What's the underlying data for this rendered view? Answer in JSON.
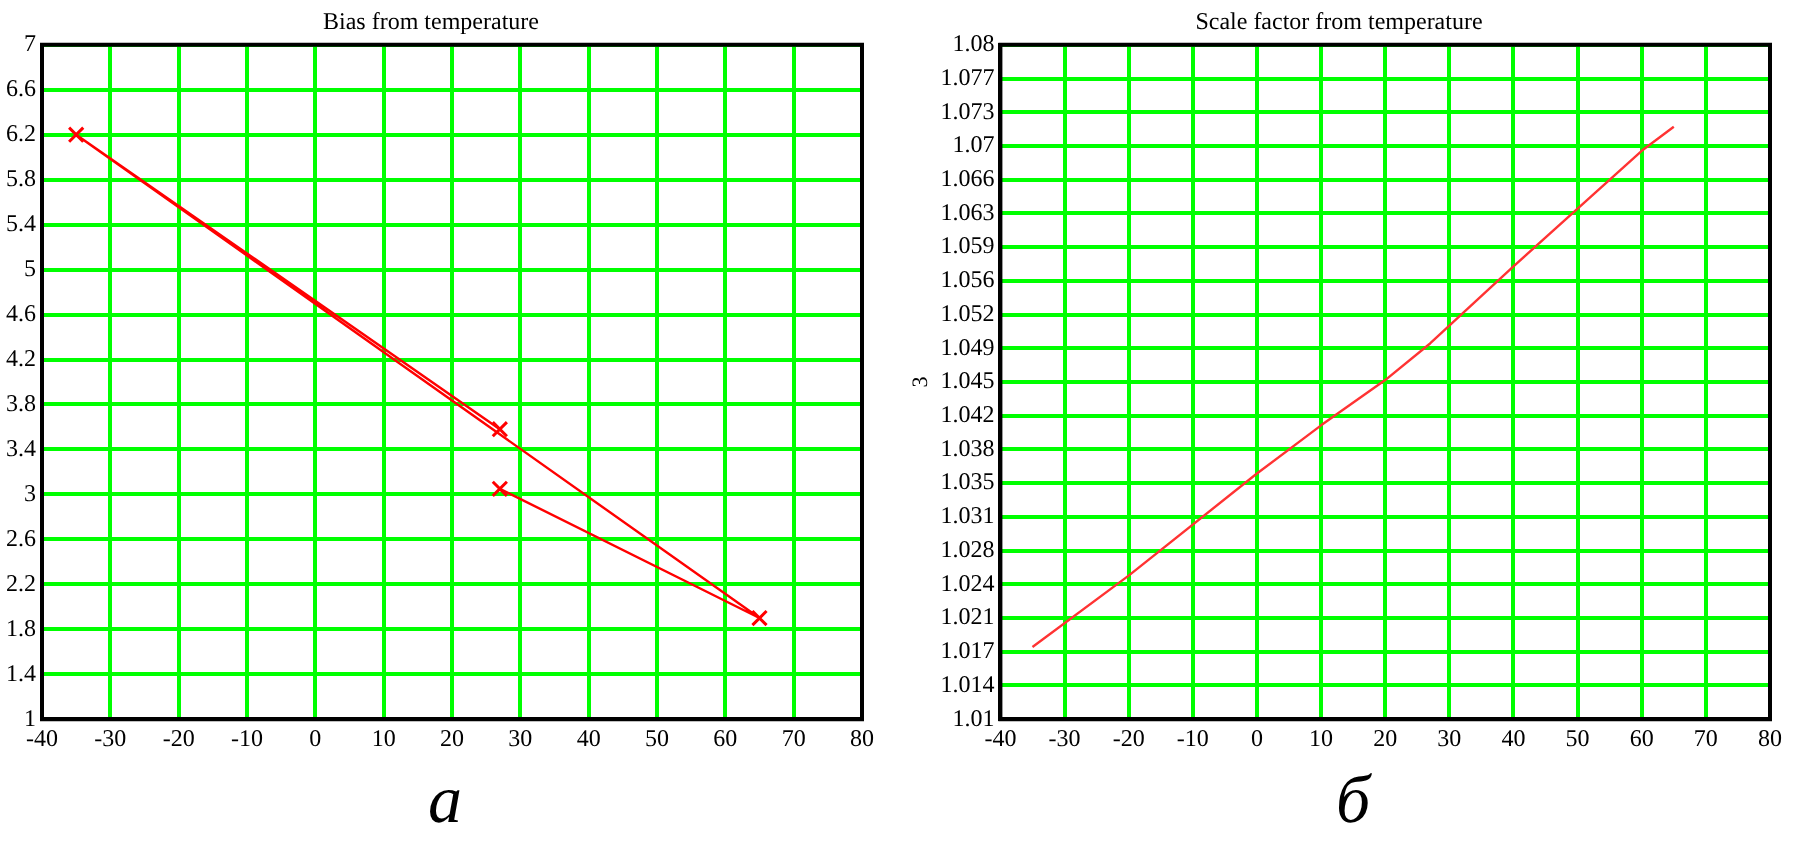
{
  "chart_data": [
    {
      "type": "line",
      "title": "Bias from temperature",
      "annotations": [
        "a"
      ],
      "marker": "cross",
      "grid": true,
      "legend": false,
      "x": [
        27,
        65,
        -35,
        27
      ],
      "series": [
        {
          "color": "#ff0000",
          "values": [
            3.05,
            1.9,
            6.2,
            3.58
          ]
        }
      ],
      "xlim": [
        -40,
        80
      ],
      "xticks": [
        -40,
        -30,
        -20,
        -10,
        0,
        10,
        20,
        30,
        40,
        50,
        60,
        70,
        80
      ],
      "ylim": [
        1,
        7
      ],
      "yticks": [
        1,
        1.4,
        1.8,
        2.2,
        2.6,
        3,
        3.4,
        3.8,
        4.2,
        4.6,
        5,
        5.4,
        5.8,
        6.2,
        6.6,
        7
      ]
    },
    {
      "type": "line",
      "title": "Scale factor from temperature",
      "ylabel": "3",
      "annotations": [
        "б"
      ],
      "marker": "none",
      "grid": true,
      "legend": false,
      "x": [
        -35,
        -20,
        0,
        10,
        20,
        27,
        40,
        50,
        60,
        65
      ],
      "series": [
        {
          "color": "#ff3333",
          "values": [
            1.0175,
            1.0249,
            1.0355,
            1.0405,
            1.0452,
            1.049,
            1.057,
            1.063,
            1.069,
            1.0715
          ]
        }
      ],
      "xlim": [
        -40,
        80
      ],
      "xticks": [
        -40,
        -30,
        -20,
        -10,
        0,
        10,
        20,
        30,
        40,
        50,
        60,
        70,
        80
      ],
      "ylim": [
        1.01,
        1.08
      ],
      "yticks": [
        1.01,
        {
          "value": 1.0135,
          "label": "1.014"
        },
        {
          "value": 1.017,
          "label": "1.017"
        },
        {
          "value": 1.0205,
          "label": "1.021"
        },
        1.024,
        {
          "value": 1.0275,
          "label": "1.028"
        },
        1.031,
        {
          "value": 1.0345,
          "label": "1.035"
        },
        1.038,
        {
          "value": 1.0415,
          "label": "1.042"
        },
        1.045,
        {
          "value": 1.0485,
          "label": "1.049"
        },
        1.052,
        {
          "value": 1.0555,
          "label": "1.056"
        },
        1.059,
        {
          "value": 1.0625,
          "label": "1.063"
        },
        1.066,
        {
          "value": 1.0695,
          "label": "1.07"
        },
        1.073,
        {
          "value": 1.0765,
          "label": "1.077"
        },
        1.08
      ]
    }
  ]
}
